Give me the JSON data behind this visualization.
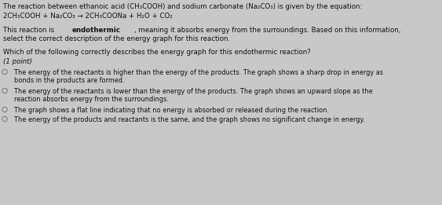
{
  "bg_color": "#c8c8c8",
  "title_line1": "The reaction between ethanoic acid (CH₃COOH) and sodium carbonate (Na₂CO₃) is given by the equation:",
  "title_line2": "2CH₃COOH + Na₂CO₃ → 2CH₃COONa + H₂O + CO₂",
  "para1_normal": "This reaction is ",
  "para1_bold": "endothermic",
  "para1_rest": ", meaning it absorbs energy from the surroundings. Based on this information,",
  "para1_line2": "select the correct description of the energy graph for this reaction.",
  "question": "Which of the following correctly describes the energy graph for this endothermic reaction?",
  "points": "(1 point)",
  "options": [
    {
      "text_line1": "The energy of the reactants is higher than the energy of the products. The graph shows a sharp drop in energy as",
      "text_line2": "bonds in the products are formed.",
      "circle_filled": false
    },
    {
      "text_line1": "The energy of the reactants is lower than the energy of the products. The graph shows an upward slope as the",
      "text_line2": "reaction absorbs energy from the surroundings.",
      "circle_filled": false
    },
    {
      "text_line1": "The graph shows a flat line indicating that no energy is absorbed or released during the reaction.",
      "text_line2": null,
      "circle_filled": false
    },
    {
      "text_line1": "The energy of the products and reactants is the same, and the graph shows no significant change in energy.",
      "text_line2": null,
      "circle_filled": false
    }
  ],
  "font_size_main": 6.2,
  "font_size_points": 6.2,
  "font_size_options": 5.9,
  "text_color": "#111111",
  "circle_color": "#777777"
}
